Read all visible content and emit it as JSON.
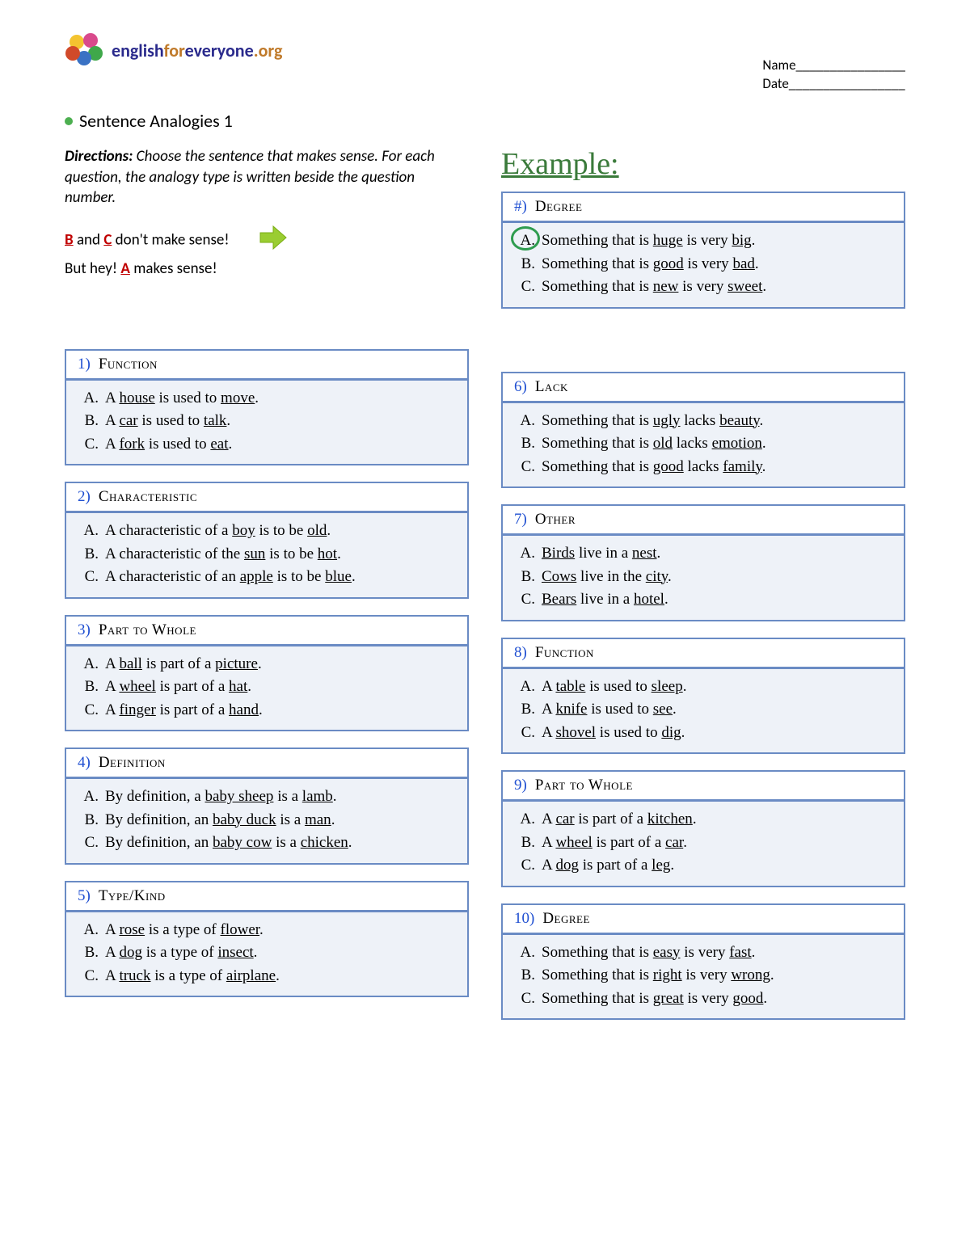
{
  "logo": {
    "text_parts": [
      {
        "text": "english",
        "color": "#2a2a8c"
      },
      {
        "text": "for",
        "color": "#c07a2a"
      },
      {
        "text": "everyone",
        "color": "#2a2a8c"
      },
      {
        "text": ".org",
        "color": "#c07a2a"
      }
    ],
    "puzzle_colors": [
      "#f4c430",
      "#d94a8c",
      "#3fa84a",
      "#3a72c4",
      "#d14a2a"
    ]
  },
  "name_date": {
    "name_label": "Name________________",
    "date_label": "Date_________________"
  },
  "title": "Sentence Analogies 1",
  "directions": {
    "label": "Directions:",
    "text": " Choose the sentence that makes sense. For each question, the analogy type is written beside the question number."
  },
  "sense": {
    "line1_pre": "",
    "b": "B",
    "and": " and ",
    "c": "C",
    "line1_post": " don't make sense!",
    "line2_pre": "But hey! ",
    "a": "A",
    "line2_post": " makes sense!"
  },
  "example_label": "Example:",
  "example_box": {
    "num": "#)",
    "type": "Degree",
    "options": [
      {
        "letter": "A.",
        "pre": "Something that is ",
        "u1": "huge",
        "mid": " is very ",
        "u2": "big",
        "post": ".",
        "circled": true
      },
      {
        "letter": "B.",
        "pre": "Something that is ",
        "u1": "good",
        "mid": " is very ",
        "u2": "bad",
        "post": "."
      },
      {
        "letter": "C.",
        "pre": "Something that is ",
        "u1": "new",
        "mid": " is very ",
        "u2": "sweet",
        "post": "."
      }
    ]
  },
  "left_questions": [
    {
      "num": "1)",
      "type": "Function",
      "options": [
        {
          "letter": "A.",
          "pre": "A ",
          "u1": "house",
          "mid": " is used to ",
          "u2": "move",
          "post": "."
        },
        {
          "letter": "B.",
          "pre": "A ",
          "u1": "car",
          "mid": " is used to ",
          "u2": "talk",
          "post": "."
        },
        {
          "letter": "C.",
          "pre": "A ",
          "u1": "fork",
          "mid": " is used to ",
          "u2": "eat",
          "post": "."
        }
      ]
    },
    {
      "num": "2)",
      "type": "Characteristic",
      "options": [
        {
          "letter": "A.",
          "pre": "A characteristic of a ",
          "u1": "boy",
          "mid": " is to be ",
          "u2": "old",
          "post": "."
        },
        {
          "letter": "B.",
          "pre": "A characteristic of the ",
          "u1": "sun",
          "mid": " is to be ",
          "u2": "hot",
          "post": "."
        },
        {
          "letter": "C.",
          "pre": "A characteristic of an ",
          "u1": "apple",
          "mid": " is to be ",
          "u2": "blue",
          "post": "."
        }
      ]
    },
    {
      "num": "3)",
      "type": "Part to Whole",
      "options": [
        {
          "letter": "A.",
          "pre": "A ",
          "u1": "ball",
          "mid": " is part of a ",
          "u2": "picture",
          "post": "."
        },
        {
          "letter": "B.",
          "pre": "A ",
          "u1": "wheel",
          "mid": " is part of a ",
          "u2": "hat",
          "post": "."
        },
        {
          "letter": "C.",
          "pre": "A ",
          "u1": "finger",
          "mid": " is part of a ",
          "u2": "hand",
          "post": "."
        }
      ]
    },
    {
      "num": "4)",
      "type": "Definition",
      "options": [
        {
          "letter": "A.",
          "pre": "By definition, a ",
          "u1": "baby sheep",
          "mid": " is a ",
          "u2": "lamb",
          "post": "."
        },
        {
          "letter": "B.",
          "pre": "By definition, an ",
          "u1": "baby duck",
          "mid": " is a ",
          "u2": "man",
          "post": "."
        },
        {
          "letter": "C.",
          "pre": "By definition, an ",
          "u1": "baby cow",
          "mid": " is a ",
          "u2": "chicken",
          "post": "."
        }
      ]
    },
    {
      "num": "5)",
      "type": "Type/Kind",
      "options": [
        {
          "letter": "A.",
          "pre": "A ",
          "u1": "rose",
          "mid": " is a type of ",
          "u2": "flower",
          "post": "."
        },
        {
          "letter": "B.",
          "pre": "A ",
          "u1": "dog",
          "mid": " is a type of ",
          "u2": "insect",
          "post": "."
        },
        {
          "letter": "C.",
          "pre": "A ",
          "u1": "truck",
          "mid": " is a type of ",
          "u2": "airplane",
          "post": "."
        }
      ]
    }
  ],
  "right_questions": [
    {
      "num": "6)",
      "type": "Lack",
      "options": [
        {
          "letter": "A.",
          "pre": "Something that is ",
          "u1": "ugly",
          "mid": " lacks ",
          "u2": "beauty",
          "post": "."
        },
        {
          "letter": "B.",
          "pre": "Something that is ",
          "u1": "old",
          "mid": " lacks ",
          "u2": "emotion",
          "post": "."
        },
        {
          "letter": "C.",
          "pre": "Something that is ",
          "u1": "good",
          "mid": " lacks ",
          "u2": "family",
          "post": "."
        }
      ]
    },
    {
      "num": "7)",
      "type": "Other",
      "options": [
        {
          "letter": "A.",
          "pre": "",
          "u1": "Birds",
          "mid": " live in a ",
          "u2": "nest",
          "post": "."
        },
        {
          "letter": "B.",
          "pre": "",
          "u1": "Cows",
          "mid": " live in the ",
          "u2": "city",
          "post": "."
        },
        {
          "letter": "C.",
          "pre": "",
          "u1": "Bears",
          "mid": " live in a ",
          "u2": "hotel",
          "post": "."
        }
      ]
    },
    {
      "num": "8)",
      "type": "Function",
      "options": [
        {
          "letter": "A.",
          "pre": "A ",
          "u1": "table",
          "mid": " is used to ",
          "u2": "sleep",
          "post": "."
        },
        {
          "letter": "B.",
          "pre": "A ",
          "u1": "knife",
          "mid": " is used to ",
          "u2": "see",
          "post": "."
        },
        {
          "letter": "C.",
          "pre": "A ",
          "u1": "shovel",
          "mid": " is used to ",
          "u2": "dig",
          "post": "."
        }
      ]
    },
    {
      "num": "9)",
      "type": "Part to Whole",
      "options": [
        {
          "letter": "A.",
          "pre": "A ",
          "u1": "car",
          "mid": " is part of a ",
          "u2": "kitchen",
          "post": "."
        },
        {
          "letter": "B.",
          "pre": "A ",
          "u1": "wheel",
          "mid": " is part of a ",
          "u2": "car",
          "post": "."
        },
        {
          "letter": "C.",
          "pre": "A ",
          "u1": "dog",
          "mid": " is part of a ",
          "u2": "leg",
          "post": "."
        }
      ]
    },
    {
      "num": "10)",
      "type": "Degree",
      "options": [
        {
          "letter": "A.",
          "pre": "Something that is ",
          "u1": "easy",
          "mid": " is very ",
          "u2": "fast",
          "post": "."
        },
        {
          "letter": "B.",
          "pre": "Something that is ",
          "u1": "right",
          "mid": " is very ",
          "u2": "wrong",
          "post": "."
        },
        {
          "letter": "C.",
          "pre": "Something that is ",
          "u1": "great",
          "mid": " is very ",
          "u2": "good",
          "post": "."
        }
      ]
    }
  ]
}
